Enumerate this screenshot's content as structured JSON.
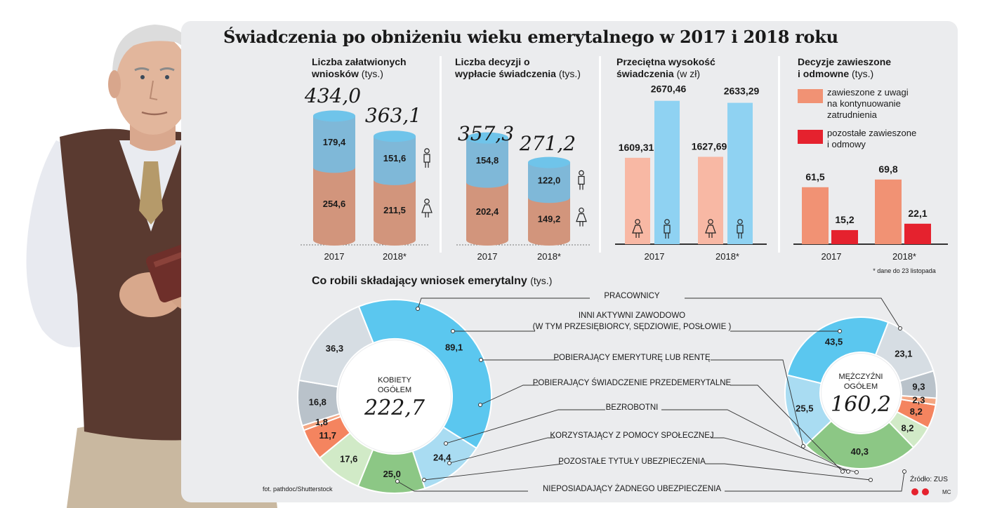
{
  "title": "Świadczenia po obniżeniu wieku emerytalnego w 2017 i 2018 roku",
  "photo_credit": "fot. pathdoc/Shutterstock",
  "source": "Źródło: ZUS",
  "author_mark": "MC",
  "footnote": "* dane do 23 listopada",
  "years": [
    "2017",
    "2018*"
  ],
  "colors": {
    "men_blue": "#7fb8d8",
    "women_brown": "#d2957c",
    "salary_pink": "#f8b8a4",
    "salary_blue": "#8fd2f2",
    "susp_orange": "#f19274",
    "susp_red": "#e5222e",
    "donut_pracownicy": "#5bc7ef",
    "donut_inni": "#a9dcf2",
    "donut_emeryt": "#8cc785",
    "donut_przedemeryt": "#d1eac7",
    "donut_bezrobotni": "#f4845f",
    "donut_pomoc": "#f4a682",
    "donut_pozostale": "#b9c2ca",
    "donut_nieposiadajacy": "#d6dde3"
  },
  "chart_data": [
    {
      "type": "bar",
      "title_bold": "Liczba załatwionych wniosków",
      "title_unit": "(tys.)",
      "categories": [
        "2017",
        "2018*"
      ],
      "totals": [
        "434,0",
        "363,1"
      ],
      "series": [
        {
          "name": "mężczyźni",
          "values": [
            179.4,
            151.6
          ],
          "labels": [
            "179,4",
            "151,6"
          ]
        },
        {
          "name": "kobiety",
          "values": [
            254.6,
            211.5
          ],
          "labels": [
            "254,6",
            "211,5"
          ]
        }
      ]
    },
    {
      "type": "bar",
      "title_bold": "Liczba decyzji o wypłacie świadczenia",
      "title_unit": "(tys.)",
      "categories": [
        "2017",
        "2018*"
      ],
      "totals": [
        "357,3",
        "271,2"
      ],
      "series": [
        {
          "name": "mężczyźni",
          "values": [
            154.8,
            122.0
          ],
          "labels": [
            "154,8",
            "122,0"
          ]
        },
        {
          "name": "kobiety",
          "values": [
            202.4,
            149.2
          ],
          "labels": [
            "202,4",
            "149,2"
          ]
        }
      ]
    },
    {
      "type": "bar",
      "title_bold": "Przeciętna wysokość świadczenia",
      "title_unit": "(w zł)",
      "categories": [
        "2017",
        "2018*"
      ],
      "series": [
        {
          "name": "kobiety",
          "values": [
            1609.31,
            1627.69
          ],
          "labels": [
            "1609,31",
            "1627,69"
          ]
        },
        {
          "name": "mężczyźni",
          "values": [
            2670.46,
            2633.29
          ],
          "labels": [
            "2670,46",
            "2633,29"
          ]
        }
      ]
    },
    {
      "type": "bar",
      "title_bold": "Decyzje zawieszone i odmowne",
      "title_unit": "(tys.)",
      "categories": [
        "2017",
        "2018*"
      ],
      "legend": [
        {
          "label_lines": [
            "zawieszone z uwagi",
            "na kontynuowanie",
            "zatrudnienia"
          ],
          "color": "#f19274"
        },
        {
          "label_lines": [
            "pozostałe zawieszone",
            "i odmowy"
          ],
          "color": "#e5222e"
        }
      ],
      "series": [
        {
          "name": "zawieszone z uwagi na kontynuowanie zatrudnienia",
          "values": [
            61.5,
            69.8
          ],
          "labels": [
            "61,5",
            "69,8"
          ]
        },
        {
          "name": "pozostałe zawieszone i odmowy",
          "values": [
            15.2,
            22.1
          ],
          "labels": [
            "15,2",
            "22,1"
          ]
        }
      ]
    },
    {
      "type": "pie",
      "title_bold": "Co robili składający wniosek emerytalny",
      "title_unit": "(tys.)",
      "categories": [
        "PRACOWNICY",
        "INNI AKTYWNI ZAWODOWO (W TYM PRZESIĘBIORCY, SĘDZIOWIE, POSŁOWIE )",
        "POBIERAJĄCY EMERYTURĘ LUB RENTĘ",
        "POBIERAJĄCY ŚWIADCZENIE PRZEDEMERYTALNE",
        "BEZROBOTNI",
        "KORZYSTAJĄCY Z POMOCY SPOŁECZNEJ",
        "POZOSTAŁE TYTUŁY UBEZPIECZENIA",
        "NIEPOSIADAJĄCY ŻADNEGO UBEZPIECZENIA"
      ],
      "women": {
        "center_label_lines": [
          "KOBIETY",
          "OGÓŁEM"
        ],
        "total": "222,7",
        "values": [
          89.1,
          24.4,
          25.0,
          17.6,
          11.7,
          1.8,
          16.8,
          36.3
        ],
        "labels": [
          "89,1",
          "24,4",
          "25,0",
          "17,6",
          "11,7",
          "1,8",
          "16,8",
          "36,3"
        ]
      },
      "men": {
        "center_label_lines": [
          "MĘŻCZYŹNI",
          "OGÓŁEM"
        ],
        "total": "160,2",
        "values": [
          43.5,
          25.5,
          40.3,
          8.2,
          8.2,
          2.3,
          9.3,
          23.1
        ],
        "labels": [
          "43,5",
          "25,5",
          "40,3",
          "8,2",
          "8,2",
          "2,3",
          "9,3",
          "23,1"
        ]
      },
      "label_lines": [
        [
          "PRACOWNICY"
        ],
        [
          "INNI AKTYWNI ZAWODOWO",
          "(W TYM PRZESIĘBIORCY, SĘDZIOWIE, POSŁOWIE )"
        ],
        [
          "POBIERAJĄCY EMERYTURĘ LUB RENTĘ"
        ],
        [
          "POBIERAJĄCY ŚWIADCZENIE PRZEDEMERYTALNE"
        ],
        [
          "BEZROBOTNI"
        ],
        [
          "KORZYSTAJĄCY Z POMOCY SPOŁECZNEJ"
        ],
        [
          "POZOSTAŁE TYTUŁY UBEZPIECZENIA"
        ],
        [
          "NIEPOSIADAJĄCY ŻADNEGO UBEZPIECZENIA"
        ]
      ]
    }
  ]
}
